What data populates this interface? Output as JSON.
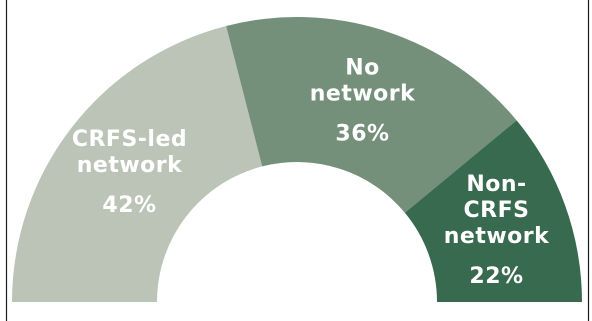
{
  "chart_data": {
    "type": "pie",
    "subtype": "semi-donut",
    "legend": "none",
    "slices": [
      {
        "label_lines": [
          "CRFS-led",
          "network"
        ],
        "value_label": "42%",
        "value": 42,
        "color": "#bcc4b8"
      },
      {
        "label_lines": [
          "No",
          "network"
        ],
        "value_label": "36%",
        "value": 36,
        "color": "#74907b"
      },
      {
        "label_lines": [
          "Non-",
          "CRFS",
          "network"
        ],
        "value_label": "22%",
        "value": 22,
        "color": "#386a4f"
      }
    ]
  }
}
